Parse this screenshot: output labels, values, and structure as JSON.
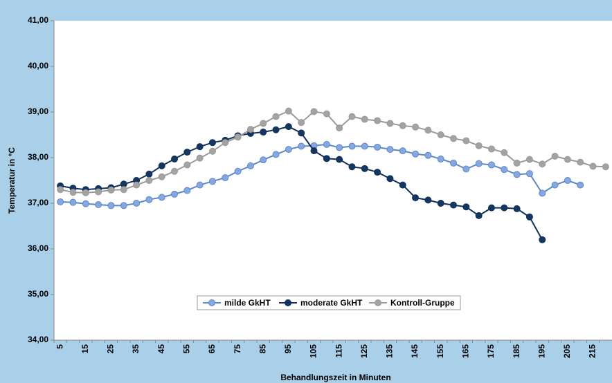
{
  "chart_data": {
    "type": "line",
    "x_label": "Behandlungszeit in Minuten",
    "y_label": "Temperatur in °C",
    "categories": [
      5,
      null,
      15,
      null,
      25,
      null,
      35,
      null,
      45,
      null,
      55,
      null,
      65,
      null,
      75,
      null,
      85,
      null,
      95,
      null,
      105,
      null,
      115,
      null,
      125,
      null,
      135,
      null,
      145,
      null,
      155,
      null,
      165,
      null,
      175,
      null,
      185,
      null,
      195,
      null,
      205,
      null,
      215,
      null
    ],
    "ylim": [
      34,
      41
    ],
    "yticks": [
      {
        "value": 34,
        "label": "34,00"
      },
      {
        "value": 35,
        "label": "35,00"
      },
      {
        "value": 36,
        "label": "36,00"
      },
      {
        "value": 37,
        "label": "37,00"
      },
      {
        "value": 38,
        "label": "38,00"
      },
      {
        "value": 39,
        "label": "39,00"
      },
      {
        "value": 40,
        "label": "40,00"
      },
      {
        "value": 41,
        "label": "41,00"
      }
    ],
    "grid": false,
    "legend": "bottom",
    "series": [
      {
        "name": "milde GkHT",
        "color": "#5b86cc",
        "marker_color": "#86a8de",
        "values": [
          37.03,
          37.02,
          36.99,
          36.97,
          36.95,
          36.95,
          37.0,
          37.08,
          37.13,
          37.2,
          37.28,
          37.4,
          37.48,
          37.56,
          37.7,
          37.82,
          37.95,
          38.07,
          38.18,
          38.25,
          38.26,
          38.29,
          38.22,
          38.25,
          38.25,
          38.23,
          38.18,
          38.15,
          38.08,
          38.05,
          37.97,
          37.88,
          37.75,
          37.87,
          37.84,
          37.74,
          37.63,
          37.65,
          37.22,
          37.4,
          37.5,
          37.4,
          null,
          null
        ]
      },
      {
        "name": "moderate GkHT",
        "color": "#0e2f5c",
        "marker_color": "#14365f",
        "values": [
          37.38,
          37.33,
          37.3,
          37.32,
          37.34,
          37.42,
          37.5,
          37.64,
          37.82,
          37.97,
          38.12,
          38.24,
          38.33,
          38.38,
          38.48,
          38.53,
          38.56,
          38.61,
          38.68,
          38.54,
          38.15,
          37.98,
          37.96,
          37.8,
          37.76,
          37.68,
          37.54,
          37.4,
          37.12,
          37.07,
          37.0,
          36.96,
          36.92,
          36.73,
          36.9,
          36.9,
          36.88,
          36.7,
          36.2,
          null,
          null,
          null,
          null,
          null
        ]
      },
      {
        "name": "Kontroll-Gruppe",
        "color": "#9a9a9a",
        "marker_color": "#a3a3a3",
        "values": [
          37.3,
          37.24,
          37.23,
          37.25,
          37.29,
          37.3,
          37.4,
          37.5,
          37.58,
          37.7,
          37.84,
          37.99,
          38.14,
          38.33,
          38.45,
          38.62,
          38.75,
          38.9,
          39.02,
          38.77,
          39.01,
          38.96,
          38.65,
          38.9,
          38.84,
          38.81,
          38.75,
          38.7,
          38.67,
          38.6,
          38.5,
          38.42,
          38.37,
          38.26,
          38.19,
          38.11,
          37.88,
          37.96,
          37.86,
          38.03,
          37.96,
          37.9,
          37.81,
          37.8
        ]
      }
    ]
  }
}
